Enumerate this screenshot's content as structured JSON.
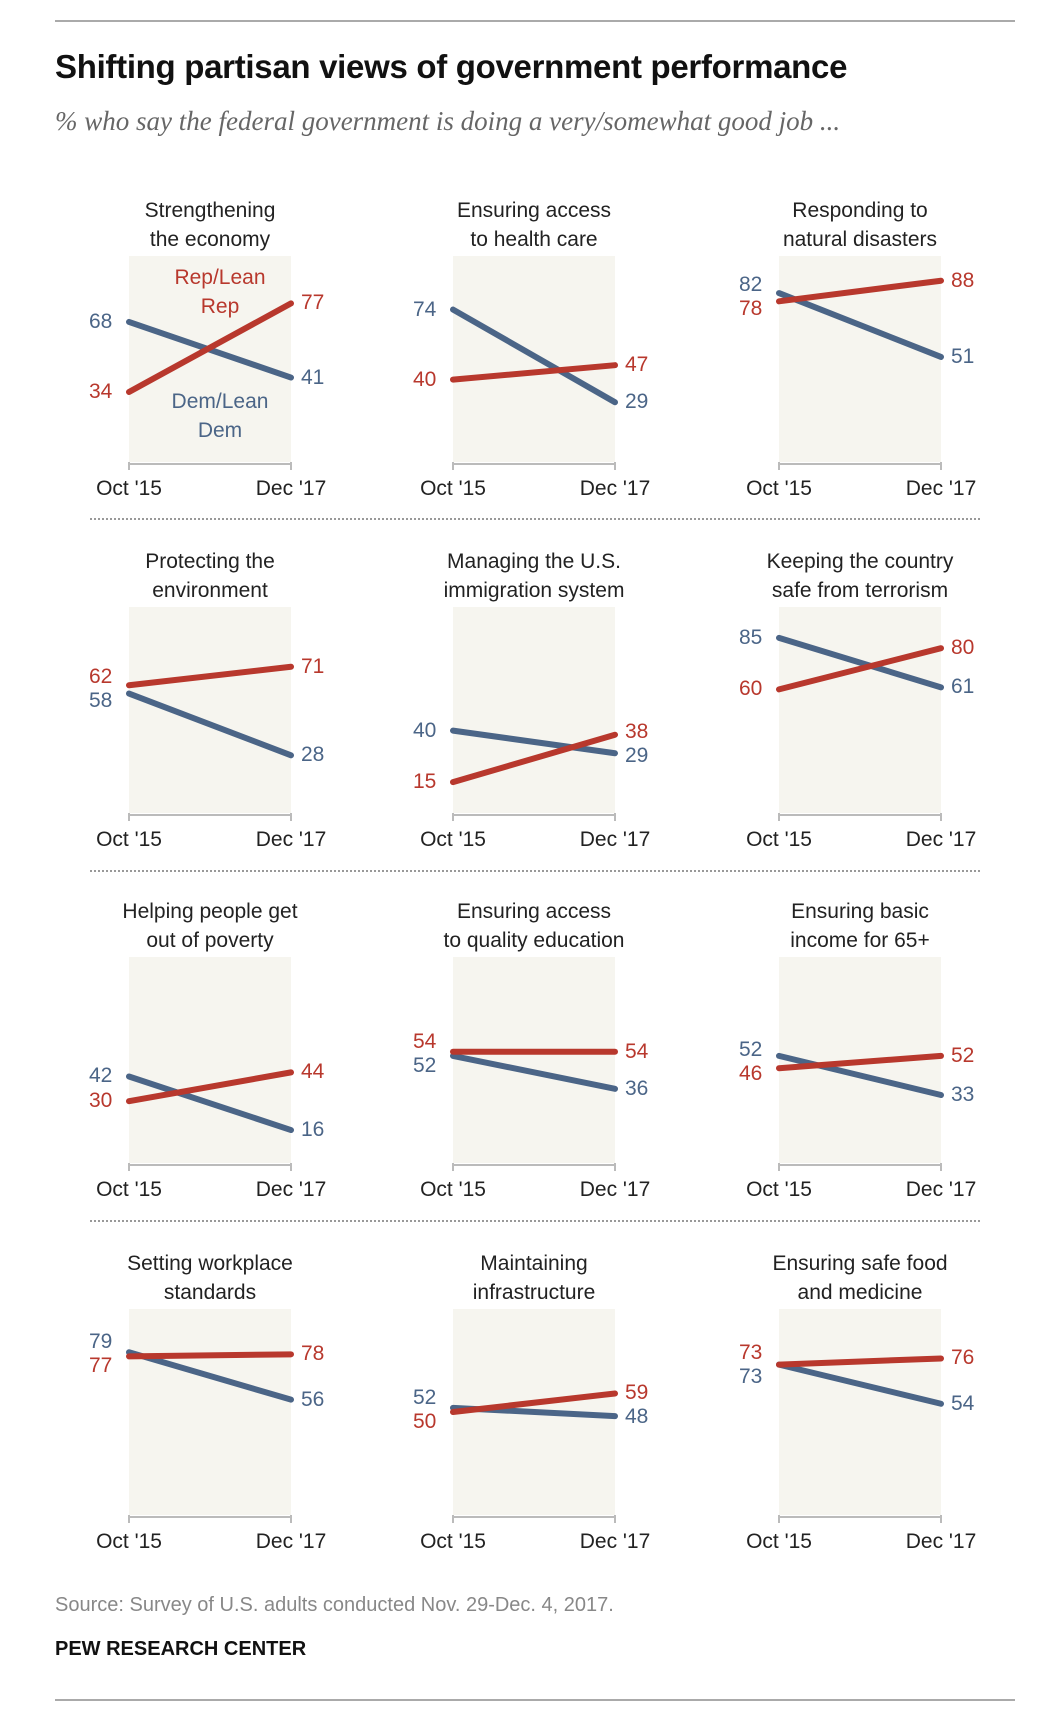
{
  "title": "Shifting partisan views of government performance",
  "subtitle": "% who say the federal government is doing a very/somewhat good job ...",
  "source": "Source: Survey of U.S. adults conducted Nov. 29-Dec. 4, 2017.",
  "organization": "PEW RESEARCH CENTER",
  "colors": {
    "rep": "#b8382d",
    "dem": "#4b6587",
    "plot_bg": "#f6f5ef"
  },
  "chart_data": {
    "type": "line",
    "layout": "small multiples, 4 rows x 3 columns",
    "x": [
      "Oct '15",
      "Dec '17"
    ],
    "ylim": [
      0,
      100
    ],
    "legend": {
      "rep": "Rep/Lean Rep",
      "dem": "Dem/Lean Dem",
      "placement": "inside first panel"
    },
    "panels": [
      {
        "title": [
          "Strengthening",
          "the economy"
        ],
        "rep": [
          34,
          77
        ],
        "dem": [
          68,
          41
        ]
      },
      {
        "title": [
          "Ensuring access",
          "to health care"
        ],
        "rep": [
          40,
          47
        ],
        "dem": [
          74,
          29
        ]
      },
      {
        "title": [
          "Responding to",
          "natural disasters"
        ],
        "rep": [
          78,
          88
        ],
        "dem": [
          82,
          51
        ]
      },
      {
        "title": [
          "Protecting the",
          "environment"
        ],
        "rep": [
          62,
          71
        ],
        "dem": [
          58,
          28
        ]
      },
      {
        "title": [
          "Managing the U.S.",
          "immigration system"
        ],
        "rep": [
          15,
          38
        ],
        "dem": [
          40,
          29
        ]
      },
      {
        "title": [
          "Keeping the country",
          "safe from terrorism"
        ],
        "rep": [
          60,
          80
        ],
        "dem": [
          85,
          61
        ]
      },
      {
        "title": [
          "Helping people get",
          "out of poverty"
        ],
        "rep": [
          30,
          44
        ],
        "dem": [
          42,
          16
        ]
      },
      {
        "title": [
          "Ensuring access",
          "to quality education"
        ],
        "rep": [
          54,
          54
        ],
        "dem": [
          52,
          36
        ]
      },
      {
        "title": [
          "Ensuring basic",
          "income for 65+"
        ],
        "rep": [
          46,
          52
        ],
        "dem": [
          52,
          33
        ]
      },
      {
        "title": [
          "Setting workplace",
          "standards"
        ],
        "rep": [
          77,
          78
        ],
        "dem": [
          79,
          56
        ]
      },
      {
        "title": [
          "Maintaining",
          "infrastructure"
        ],
        "rep": [
          50,
          59
        ],
        "dem": [
          52,
          48
        ]
      },
      {
        "title": [
          "Ensuring safe food",
          "and medicine"
        ],
        "rep": [
          73,
          76
        ],
        "dem": [
          73,
          54
        ]
      }
    ]
  }
}
